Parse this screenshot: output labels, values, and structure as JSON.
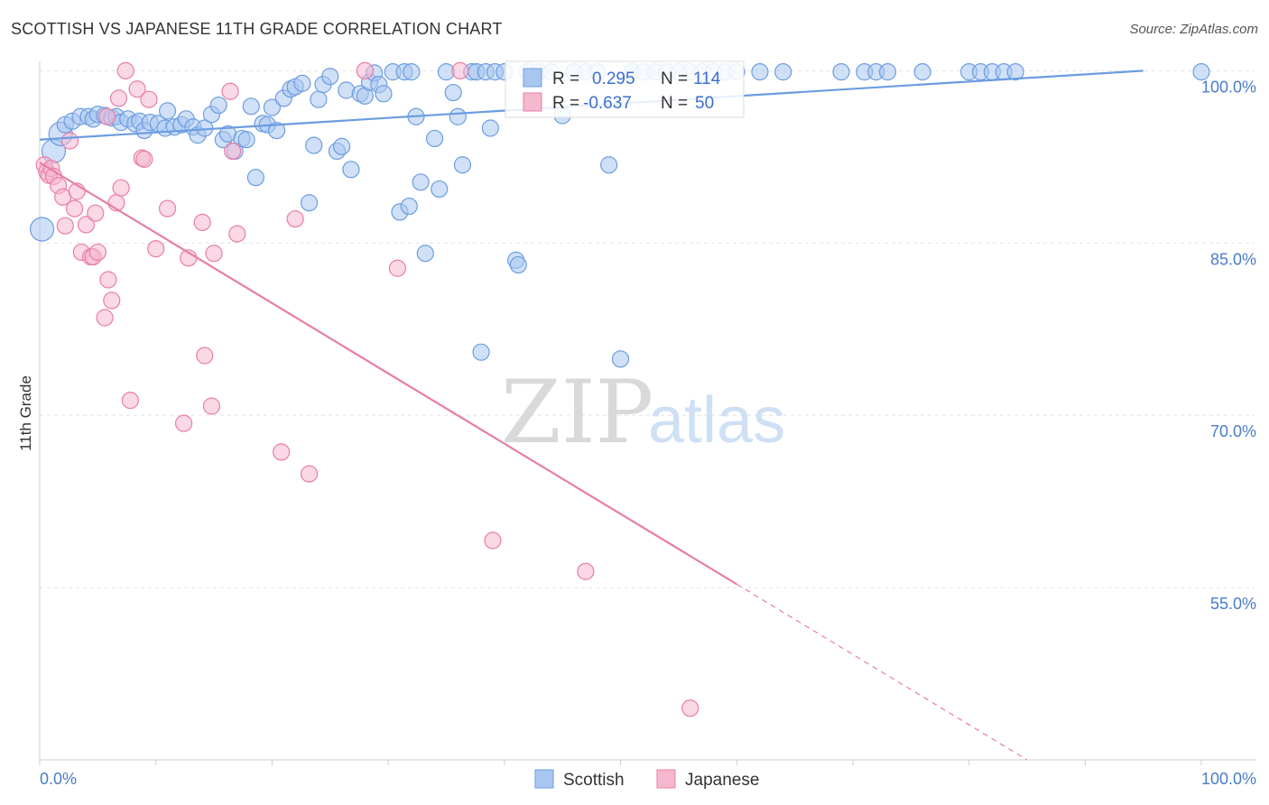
{
  "header": {
    "title": "SCOTTISH VS JAPANESE 11TH GRADE CORRELATION CHART",
    "source": "Source: ZipAtlas.com"
  },
  "watermark": {
    "zip": "ZIP",
    "atlas": "atlas"
  },
  "chart_data": {
    "type": "scatter",
    "title": "SCOTTISH VS JAPANESE 11TH GRADE CORRELATION CHART",
    "xlabel": "",
    "ylabel": "11th Grade",
    "xlim": [
      0,
      100
    ],
    "ylim": [
      40,
      100.5
    ],
    "x_tick_labels": [
      "0.0%",
      "100.0%"
    ],
    "y_ticks": [
      {
        "value": 100,
        "label": "100.0%"
      },
      {
        "value": 85,
        "label": "85.0%"
      },
      {
        "value": 70,
        "label": "70.0%"
      },
      {
        "value": 55,
        "label": "55.0%"
      }
    ],
    "grid": true,
    "legend_position": "bottom-center",
    "series": [
      {
        "name": "Scottish",
        "color": "#6b9de0",
        "fill": "#a9c6f0",
        "r": "0.295",
        "n": "114",
        "trend": {
          "x1": 0,
          "y1": 94.0,
          "x2": 95,
          "y2": 100.0,
          "dashed_to": null
        },
        "points": [
          [
            0.2,
            86.2
          ],
          [
            1.2,
            93.0
          ],
          [
            1.8,
            94.5
          ],
          [
            2.2,
            95.3
          ],
          [
            2.8,
            95.6
          ],
          [
            3.5,
            96.0
          ],
          [
            4.2,
            96.0
          ],
          [
            4.6,
            95.8
          ],
          [
            5.0,
            96.2
          ],
          [
            5.6,
            96.1
          ],
          [
            6.2,
            95.9
          ],
          [
            6.6,
            96.0
          ],
          [
            7.0,
            95.5
          ],
          [
            7.6,
            95.8
          ],
          [
            8.2,
            95.4
          ],
          [
            8.6,
            95.6
          ],
          [
            9.0,
            94.8
          ],
          [
            9.5,
            95.5
          ],
          [
            10.2,
            95.4
          ],
          [
            10.8,
            95.0
          ],
          [
            11.0,
            96.5
          ],
          [
            11.6,
            95.1
          ],
          [
            12.2,
            95.3
          ],
          [
            12.6,
            95.8
          ],
          [
            13.2,
            95.1
          ],
          [
            13.6,
            94.4
          ],
          [
            14.2,
            95.0
          ],
          [
            14.8,
            96.2
          ],
          [
            15.4,
            97.0
          ],
          [
            15.8,
            94.0
          ],
          [
            16.2,
            94.5
          ],
          [
            16.8,
            93.0
          ],
          [
            17.4,
            94.1
          ],
          [
            17.8,
            94.0
          ],
          [
            18.2,
            96.9
          ],
          [
            18.6,
            90.7
          ],
          [
            19.2,
            95.4
          ],
          [
            19.6,
            95.3
          ],
          [
            20.0,
            96.8
          ],
          [
            20.4,
            94.8
          ],
          [
            21.0,
            97.6
          ],
          [
            21.6,
            98.4
          ],
          [
            22.0,
            98.6
          ],
          [
            22.6,
            98.9
          ],
          [
            23.2,
            88.5
          ],
          [
            23.6,
            93.5
          ],
          [
            24.0,
            97.5
          ],
          [
            24.4,
            98.8
          ],
          [
            25.0,
            99.5
          ],
          [
            25.6,
            93.0
          ],
          [
            26.0,
            93.4
          ],
          [
            26.4,
            98.3
          ],
          [
            26.8,
            91.4
          ],
          [
            27.6,
            98.0
          ],
          [
            28.0,
            97.8
          ],
          [
            28.4,
            99.0
          ],
          [
            28.8,
            99.8
          ],
          [
            29.2,
            98.8
          ],
          [
            29.6,
            98.0
          ],
          [
            30.4,
            99.9
          ],
          [
            31.0,
            87.7
          ],
          [
            31.4,
            99.9
          ],
          [
            31.8,
            88.2
          ],
          [
            32.0,
            99.9
          ],
          [
            32.4,
            96.0
          ],
          [
            32.8,
            90.3
          ],
          [
            33.2,
            84.1
          ],
          [
            34.0,
            94.1
          ],
          [
            34.4,
            89.7
          ],
          [
            35.0,
            99.9
          ],
          [
            35.6,
            98.1
          ],
          [
            36.0,
            96.0
          ],
          [
            36.4,
            91.8
          ],
          [
            37.2,
            99.9
          ],
          [
            37.6,
            99.9
          ],
          [
            38.0,
            75.5
          ],
          [
            38.4,
            99.9
          ],
          [
            38.8,
            95.0
          ],
          [
            39.2,
            99.9
          ],
          [
            40.0,
            99.9
          ],
          [
            41.0,
            83.5
          ],
          [
            41.2,
            83.1
          ],
          [
            42.0,
            99.9
          ],
          [
            43.0,
            99.9
          ],
          [
            44.0,
            99.9
          ],
          [
            45.0,
            96.1
          ],
          [
            46.0,
            99.9
          ],
          [
            47.0,
            99.9
          ],
          [
            48.0,
            99.9
          ],
          [
            49.0,
            91.8
          ],
          [
            50.0,
            74.9
          ],
          [
            51.0,
            99.9
          ],
          [
            52.0,
            99.9
          ],
          [
            53.0,
            99.9
          ],
          [
            54.0,
            99.9
          ],
          [
            55.0,
            99.9
          ],
          [
            56.0,
            99.9
          ],
          [
            57.0,
            99.9
          ],
          [
            58.0,
            99.9
          ],
          [
            59.0,
            99.9
          ],
          [
            60.0,
            99.9
          ],
          [
            62.0,
            99.9
          ],
          [
            64.0,
            99.9
          ],
          [
            69.0,
            99.9
          ],
          [
            71.0,
            99.9
          ],
          [
            72.0,
            99.9
          ],
          [
            73.0,
            99.9
          ],
          [
            76.0,
            99.9
          ],
          [
            80.0,
            99.9
          ],
          [
            81.0,
            99.9
          ],
          [
            82.0,
            99.9
          ],
          [
            83.0,
            99.9
          ],
          [
            84.0,
            99.9
          ],
          [
            100.0,
            99.9
          ]
        ]
      },
      {
        "name": "Japanese",
        "color": "#e87ea6",
        "fill": "#f5b8cf",
        "r": "-0.637",
        "n": "50",
        "trend": {
          "x1": 0,
          "y1": 92.0,
          "x2": 60,
          "y2": 55.3,
          "dashed_to": {
            "x": 85,
            "y": 40.0
          }
        },
        "points": [
          [
            0.4,
            91.8
          ],
          [
            0.6,
            91.2
          ],
          [
            0.8,
            90.9
          ],
          [
            1.0,
            91.5
          ],
          [
            1.2,
            90.8
          ],
          [
            1.6,
            90.0
          ],
          [
            2.0,
            89.0
          ],
          [
            2.2,
            86.5
          ],
          [
            2.6,
            93.9
          ],
          [
            3.0,
            88.0
          ],
          [
            3.2,
            89.5
          ],
          [
            3.6,
            84.2
          ],
          [
            4.0,
            86.6
          ],
          [
            4.4,
            83.8
          ],
          [
            4.6,
            83.8
          ],
          [
            4.8,
            87.6
          ],
          [
            5.0,
            84.2
          ],
          [
            5.6,
            78.5
          ],
          [
            5.8,
            96.0
          ],
          [
            5.9,
            81.8
          ],
          [
            6.2,
            80.0
          ],
          [
            6.6,
            88.5
          ],
          [
            6.8,
            97.6
          ],
          [
            7.0,
            89.8
          ],
          [
            7.4,
            100.0
          ],
          [
            7.8,
            71.3
          ],
          [
            8.4,
            98.4
          ],
          [
            8.8,
            92.4
          ],
          [
            9.0,
            92.3
          ],
          [
            9.4,
            97.5
          ],
          [
            10.0,
            84.5
          ],
          [
            11.0,
            88.0
          ],
          [
            12.4,
            69.3
          ],
          [
            12.8,
            83.7
          ],
          [
            14.0,
            86.8
          ],
          [
            14.2,
            75.2
          ],
          [
            14.8,
            70.8
          ],
          [
            15.0,
            84.1
          ],
          [
            16.4,
            98.2
          ],
          [
            16.6,
            93.0
          ],
          [
            17.0,
            85.8
          ],
          [
            20.8,
            66.8
          ],
          [
            22.0,
            87.1
          ],
          [
            23.2,
            64.9
          ],
          [
            28.0,
            100.0
          ],
          [
            30.8,
            82.8
          ],
          [
            36.2,
            100.0
          ],
          [
            39.0,
            59.1
          ],
          [
            47.0,
            56.4
          ],
          [
            56.0,
            44.5
          ]
        ]
      }
    ]
  }
}
